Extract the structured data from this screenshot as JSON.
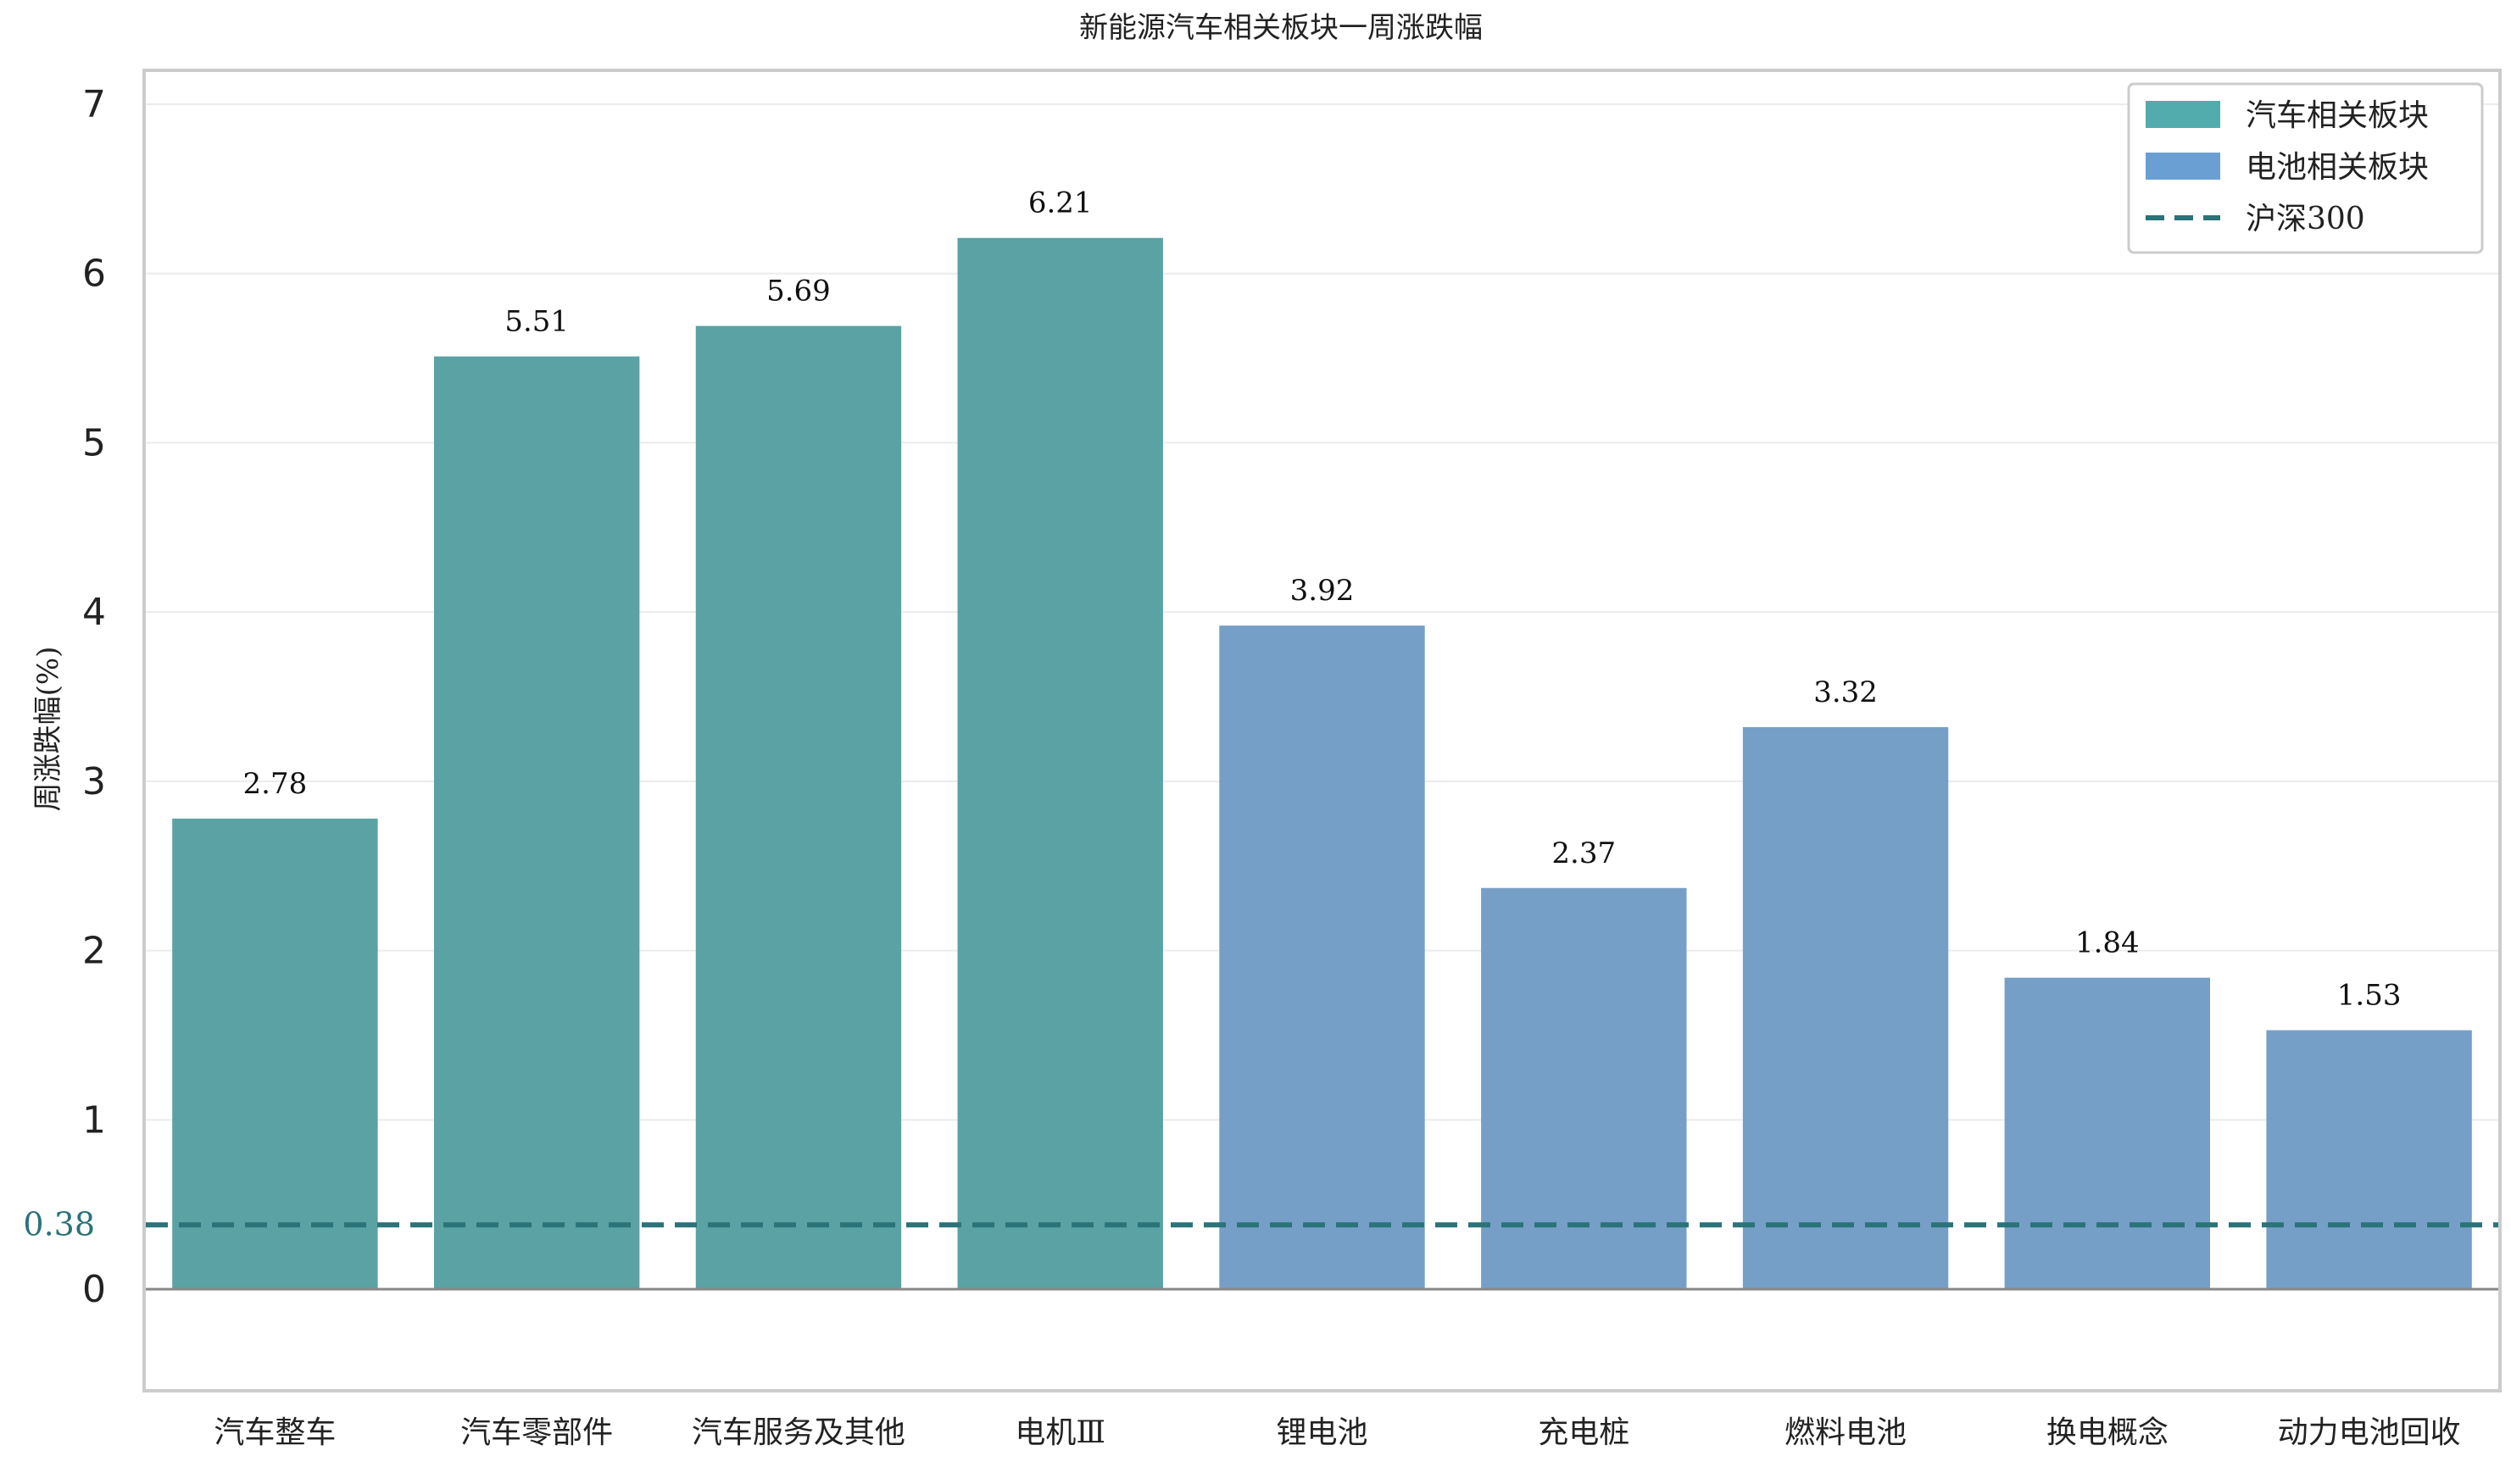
{
  "chart_data": {
    "type": "bar",
    "title": "新能源汽车相关板块一周涨跌幅",
    "xlabel": "",
    "ylabel": "周涨跌幅(%)",
    "ylim": [
      -0.6,
      7.2
    ],
    "yticks": [
      0,
      1,
      2,
      3,
      4,
      5,
      6,
      7
    ],
    "grid": "horizontal",
    "legend_position": "top-right",
    "categories": [
      "汽车整车",
      "汽车零部件",
      "汽车服务及其他",
      "电机Ⅲ",
      "锂电池",
      "充电桩",
      "燃料电池",
      "换电概念",
      "动力电池回收"
    ],
    "values": [
      2.78,
      5.51,
      5.69,
      6.21,
      3.92,
      2.37,
      3.32,
      1.84,
      1.53
    ],
    "data_labels": [
      "2.78",
      "5.51",
      "5.69",
      "6.21",
      "3.92",
      "2.37",
      "3.32",
      "1.84",
      "1.53"
    ],
    "groups": [
      "auto",
      "auto",
      "auto",
      "auto",
      "battery",
      "battery",
      "battery",
      "battery",
      "battery"
    ],
    "series": [
      {
        "name": "汽车相关板块",
        "key": "auto",
        "color": "#5aa2a4"
      },
      {
        "name": "电池相关板块",
        "key": "battery",
        "color": "#769fc7"
      }
    ],
    "legend": [
      {
        "label": "汽车相关板块",
        "type": "patch",
        "color": "#52acae"
      },
      {
        "label": "电池相关板块",
        "type": "patch",
        "color": "#6a9fd4"
      },
      {
        "label": "沪深300",
        "type": "dashed-line",
        "color": "#2a7378"
      }
    ],
    "reference_line": {
      "name": "沪深300",
      "value": 0.38,
      "label": "0.38",
      "color": "#2a7378"
    }
  }
}
